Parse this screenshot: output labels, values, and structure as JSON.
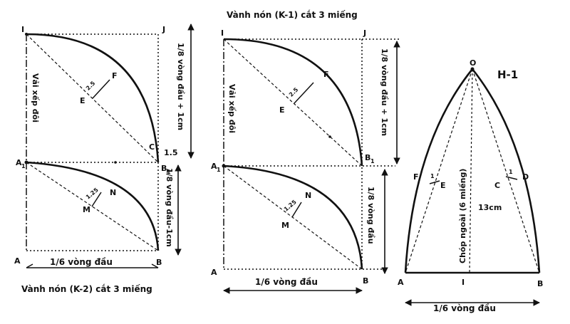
{
  "left": {
    "points": {
      "I": "I",
      "J": "J",
      "A1": "A",
      "A1_sub": "1",
      "B1": "B",
      "B1_sub": "1",
      "A": "A",
      "B": "B",
      "C": "C",
      "E": "E",
      "F": "F",
      "M": "M",
      "N": "N"
    },
    "dim_upper": "2.5",
    "dim_lower": "1.25",
    "dim_c": "1.5",
    "fabric_note": "Vải xếp đôi",
    "vertical_upper": "1/8 vòng đầu + 1cm",
    "vertical_lower": "1/8 vòng đầu-1cm",
    "bottom_measure": "1/6 vòng đầu",
    "caption": "Vành nón (K-2) cắt 3 miếng"
  },
  "middle": {
    "points": {
      "I": "I",
      "J": "J",
      "A1": "A",
      "A1_sub": "1",
      "B1": "B",
      "B1_sub": "1",
      "A": "A",
      "B": "B",
      "E": "E",
      "F": "F",
      "M": "M",
      "N": "N"
    },
    "dim_upper": "2.5",
    "dim_lower": "1.25",
    "fabric_note": "Vải xếp đôi",
    "vertical_upper": "1/8 vòng đầu + 1cm",
    "vertical_lower": "1/8 vòng đầu",
    "bottom_measure": "1/6 vòng đầu",
    "caption": "Vành nón (K-1) cắt 3 miếng"
  },
  "right": {
    "title": "H-1",
    "points": {
      "O": "O",
      "A": "A",
      "B": "B",
      "C": "C",
      "D": "D",
      "E": "E",
      "F": "F",
      "I": "I"
    },
    "dim_left": "1",
    "dim_right": "1",
    "center_note": "Chóp ngoài (6 miếng)",
    "height": "13cm",
    "bottom_measure": "1/6 vòng đầu"
  }
}
